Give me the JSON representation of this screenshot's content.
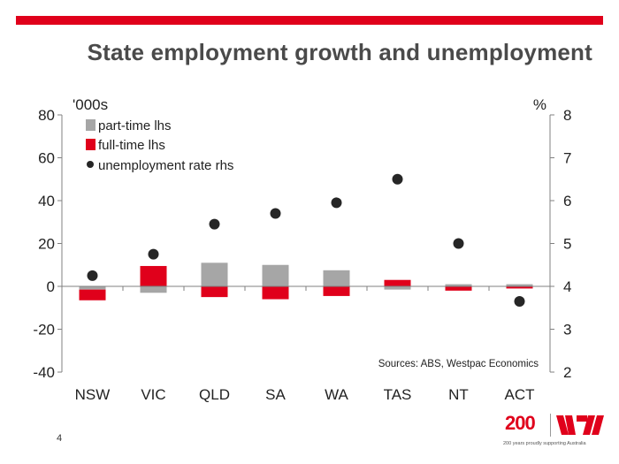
{
  "header": {
    "title": "State employment growth and unemployment"
  },
  "footer": {
    "page_number": "4"
  },
  "branding": {
    "logo_text": "200",
    "tagline": "200 years proudly supporting Australia",
    "brand_color": "#e0001b"
  },
  "colors": {
    "part_time": "#a6a6a6",
    "full_time": "#e0001b",
    "unemployment": "#262626",
    "axis": "#808080"
  },
  "chart_data": {
    "type": "bar",
    "title": "State employment growth and unemployment",
    "categories": [
      "NSW",
      "VIC",
      "QLD",
      "SA",
      "WA",
      "TAS",
      "NT",
      "ACT"
    ],
    "series": [
      {
        "name": "part-time lhs",
        "kind": "bar",
        "axis": "left",
        "values": [
          -1.5,
          -3,
          11,
          10,
          7.5,
          -1.5,
          1,
          1
        ]
      },
      {
        "name": "full-time lhs",
        "kind": "bar",
        "axis": "left",
        "values": [
          -5,
          9.5,
          -5,
          -6,
          -4.5,
          3,
          -2,
          -1
        ]
      },
      {
        "name": "unemployment rate rhs",
        "kind": "scatter",
        "axis": "right",
        "values": [
          4.25,
          4.75,
          5.45,
          5.7,
          5.95,
          6.5,
          5.0,
          3.65
        ]
      }
    ],
    "ylabel_left": "'000s",
    "ylabel_right": "%",
    "ylim_left": [
      -40,
      80
    ],
    "ylim_right": [
      2,
      8
    ],
    "yticks_left": [
      -40,
      -20,
      0,
      20,
      40,
      60,
      80
    ],
    "yticks_right": [
      2,
      3,
      4,
      5,
      6,
      7,
      8
    ],
    "legend_position": "top-left",
    "source_note": "Sources: ABS, Westpac Economics"
  }
}
